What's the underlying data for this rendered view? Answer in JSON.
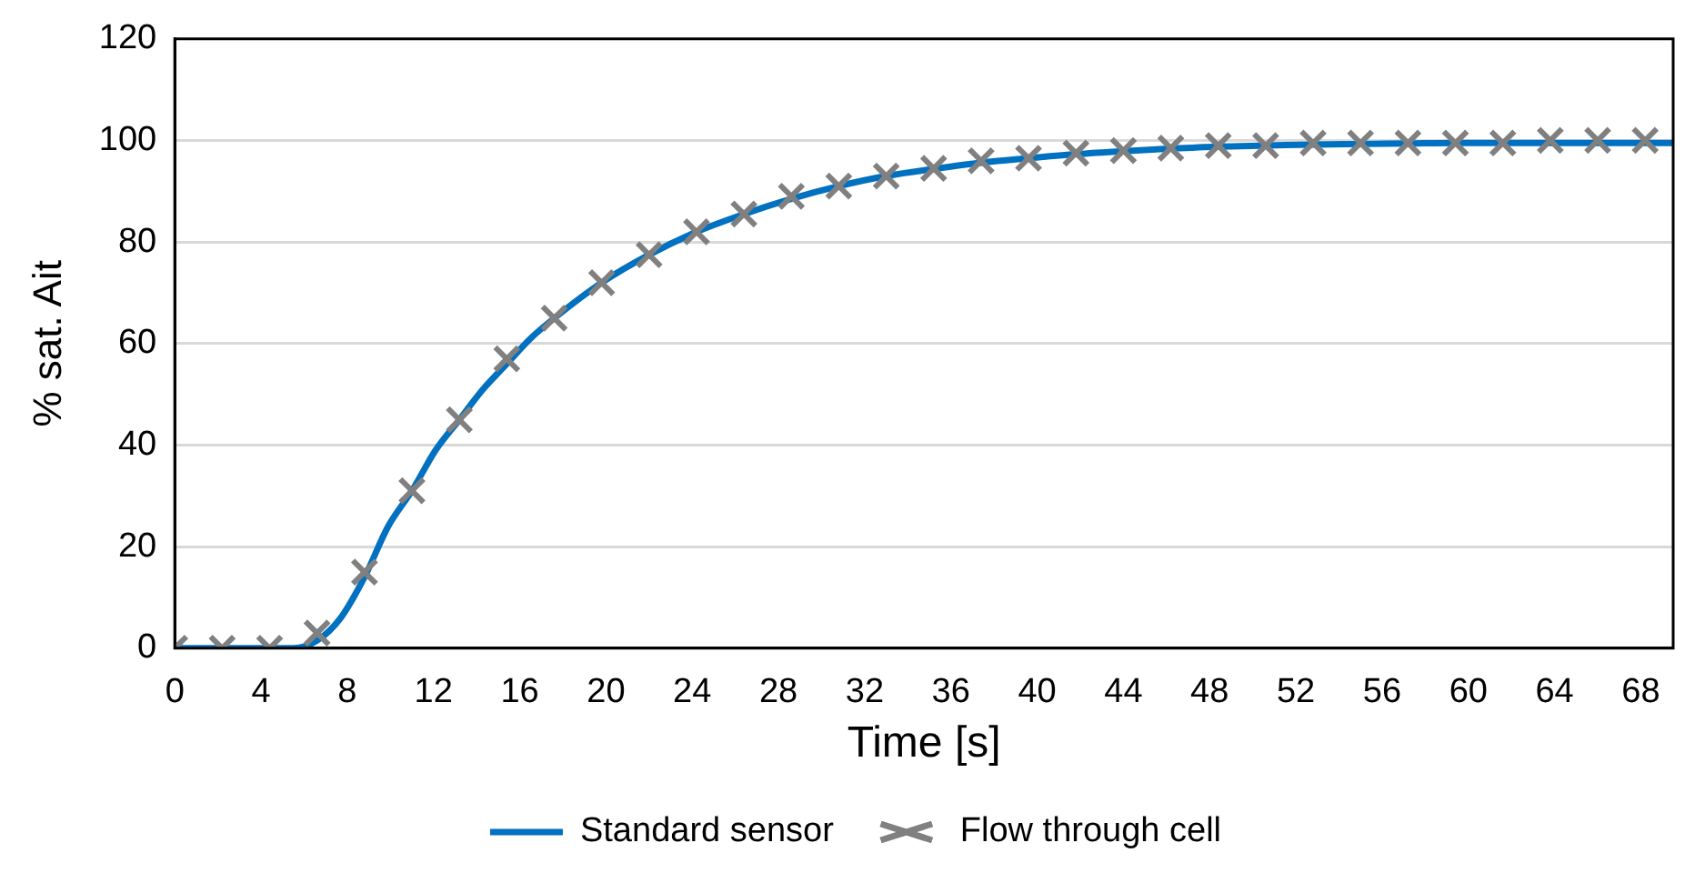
{
  "chart_data": {
    "type": "line",
    "xlabel": "Time [s]",
    "ylabel": "% sat. Ait",
    "xlim": [
      0,
      69.5
    ],
    "xticks": [
      0,
      4,
      8,
      12,
      16,
      20,
      24,
      28,
      32,
      36,
      40,
      44,
      48,
      52,
      56,
      60,
      64,
      68
    ],
    "ylim": [
      0,
      120
    ],
    "yticks": [
      0,
      20,
      40,
      60,
      80,
      100,
      120
    ],
    "grid": "y",
    "legend": "bottom",
    "series": [
      {
        "name": "Standard sensor",
        "marker": "none",
        "line_style": "solid",
        "color": "#0070c0",
        "x": [
          0,
          2.2,
          4.4,
          5.5,
          6.6,
          7.7,
          8.8,
          9.9,
          11,
          12.1,
          13.2,
          14.3,
          15.4,
          16.5,
          17.6,
          19.8,
          22,
          24.2,
          26.4,
          28.6,
          30.8,
          33,
          35.2,
          37.4,
          39.6,
          41.8,
          44,
          46.2,
          48.4,
          50.6,
          52.8,
          55,
          57.2,
          59.4,
          61.6,
          63.8,
          66,
          68.2,
          69.5
        ],
        "values": [
          0,
          0,
          0,
          0,
          1.5,
          6,
          14,
          24,
          31,
          39,
          45,
          51,
          56,
          61,
          65,
          72,
          77.5,
          82,
          85.5,
          88.5,
          91,
          93,
          94.4,
          95.6,
          96.5,
          97.3,
          97.9,
          98.4,
          98.8,
          99,
          99.2,
          99.3,
          99.4,
          99.5,
          99.5,
          99.5,
          99.5,
          99.5,
          99.5
        ]
      },
      {
        "name": "Flow through cell",
        "type": "scatter",
        "marker": "cross",
        "color": "#808080",
        "x": [
          0,
          2.2,
          4.4,
          6.6,
          8.8,
          11,
          13.2,
          15.4,
          17.6,
          19.8,
          22,
          24.2,
          26.4,
          28.6,
          30.8,
          33,
          35.2,
          37.4,
          39.6,
          41.8,
          44,
          46.2,
          48.4,
          50.6,
          52.8,
          55,
          57.2,
          59.4,
          61.6,
          63.8,
          66,
          68.2
        ],
        "values": [
          0,
          0,
          0,
          3,
          15,
          31,
          45,
          57,
          65,
          72,
          77.5,
          82,
          85.5,
          89,
          91,
          93,
          94.5,
          96,
          96.5,
          97.5,
          98,
          98.5,
          99,
          99,
          99.5,
          99.5,
          99.5,
          99.5,
          99.5,
          100,
          100,
          100
        ]
      }
    ]
  }
}
